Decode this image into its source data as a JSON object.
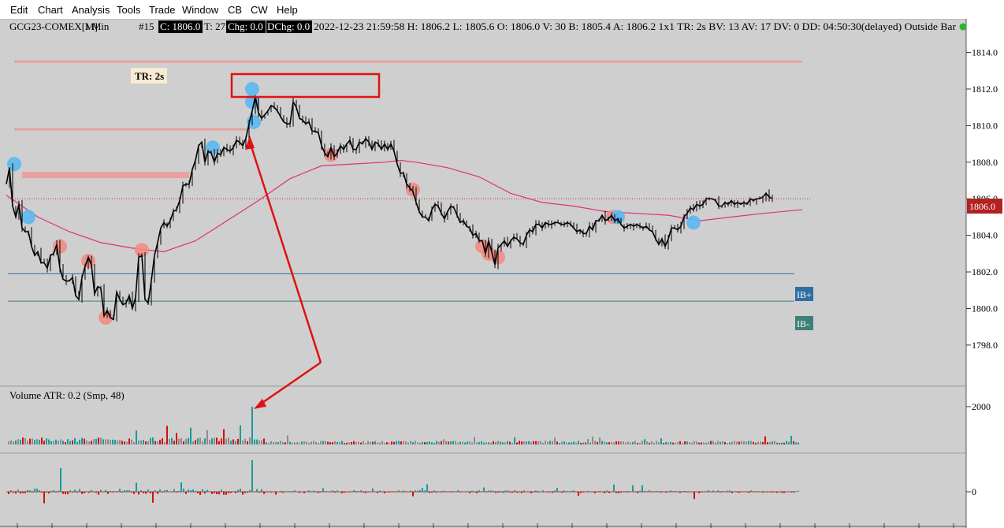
{
  "menu": [
    "Edit",
    "Chart",
    "Analysis",
    "Tools",
    "Trade",
    "Window",
    "CB",
    "CW",
    "Help"
  ],
  "info": {
    "symbol": "GCG23-COMEX[M]",
    "interval": "1 Min",
    "bar_no": "#15",
    "close_box": "C: 1806.0",
    "ticks": "T: 27",
    "chg_box": "Chg: 0.0",
    "dchg_box": "DChg: 0.0",
    "rest": "2022-12-23 21:59:58 H: 1806.2 L: 1805.6 O: 1806.0 V: 30 B: 1805.4 A: 1806.2 1x1 TR: 2s BV: 13 AV: 17 DV: 0 DD: 04:50:30(delayed) Outside Bar"
  },
  "tr_label": "TR: 2s",
  "last_price_label": "1806.0",
  "ib_plus_label": "IB+",
  "ib_minus_label": "IB-",
  "volume_label": "Volume  ATR: 0.2   (Smp, 48)",
  "colors": {
    "background": "#cfcfcf",
    "price_line": "#000000",
    "moving_average": "#e0307a",
    "last_price_box": "#b22222",
    "ib_line": "#2f6fa3",
    "ib_minus_line": "#3e7f7a",
    "volume_up": "#1a9a9a",
    "volume_down": "#d01010",
    "volume_neutral": "#8c8c8c",
    "annotation": "#e11111",
    "marker_blue": "#5ab8f0",
    "marker_red": "#f08c84",
    "zone": "#e8a0a0"
  },
  "chart_data": [
    {
      "type": "line",
      "yticks": [
        1798.0,
        1800.0,
        1802.0,
        1804.0,
        1806.0,
        1808.0,
        1810.0,
        1812.0,
        1814.0
      ],
      "ylim": [
        1796.4,
        1814.8
      ],
      "x": [
        0,
        4,
        8,
        12,
        16,
        20,
        24,
        28,
        32,
        36,
        40,
        44,
        48,
        52,
        56,
        60,
        64,
        68,
        72,
        76,
        80,
        84,
        88,
        92,
        96,
        100,
        104,
        108,
        112,
        116,
        120,
        124,
        128,
        132,
        136,
        140,
        144,
        148,
        152,
        156,
        160,
        164,
        168,
        172,
        176,
        180,
        184,
        188,
        192,
        196,
        200,
        204,
        208,
        212,
        216,
        220,
        224,
        228,
        232,
        236,
        240,
        244,
        248,
        252,
        256,
        260,
        264,
        268,
        272,
        276,
        280,
        284,
        288,
        292,
        296,
        300,
        304,
        308,
        312,
        316,
        320,
        324,
        328,
        332,
        336,
        340,
        344,
        348,
        352,
        356,
        360,
        364,
        368,
        372,
        376,
        380,
        384,
        388,
        392,
        396,
        400,
        404,
        408,
        412,
        416,
        420,
        424,
        428,
        432,
        436,
        440,
        444,
        448,
        452,
        456,
        460,
        464,
        468,
        472,
        476,
        480,
        484,
        488,
        492,
        496,
        500,
        504,
        508,
        512,
        516,
        520,
        524,
        528,
        532,
        536,
        540,
        544,
        548,
        552,
        556,
        560,
        564,
        568,
        572,
        576,
        580,
        584,
        588,
        592,
        596,
        600,
        604,
        608,
        612,
        616,
        620,
        624,
        628,
        632,
        636,
        640,
        644,
        648,
        652,
        656,
        660,
        664,
        668,
        672,
        676,
        680,
        684,
        688,
        692,
        696,
        700,
        704,
        708,
        712,
        716,
        720,
        724,
        728,
        732,
        736,
        740,
        744,
        748,
        752,
        756,
        760,
        764,
        768,
        772,
        776,
        780,
        784,
        788,
        792,
        796,
        800,
        804,
        808,
        812,
        816,
        820,
        824,
        828,
        832,
        836,
        840,
        844,
        848,
        852,
        856,
        860,
        864,
        868,
        872,
        876,
        880,
        884,
        888,
        892,
        896,
        900,
        904,
        908,
        912,
        916,
        920,
        924,
        928,
        932,
        936,
        940,
        944,
        948,
        952,
        956,
        960,
        964,
        968,
        972,
        976,
        980,
        984,
        988,
        992,
        996,
        1000,
        1004
      ],
      "price": [
        1806.8,
        1807.7,
        1805.6,
        1805.0,
        1805.7,
        1804.4,
        1804.2,
        1804.2,
        1803.4,
        1802.9,
        1803.1,
        1802.5,
        1802.5,
        1802.2,
        1802.9,
        1803.0,
        1803.5,
        1802.2,
        1801.6,
        1801.5,
        1801.5,
        1801.7,
        1800.7,
        1800.5,
        1801.7,
        1802.3,
        1802.8,
        1802.4,
        1800.8,
        1801.2,
        1801.1,
        1799.6,
        1799.9,
        1799.5,
        1799.4,
        1800.9,
        1800.5,
        1800.2,
        1800.3,
        1800.7,
        1800.0,
        1800.6,
        1802.8,
        1802.9,
        1800.5,
        1800.3,
        1801.5,
        1802.9,
        1803.6,
        1804.4,
        1804.7,
        1804.5,
        1804.8,
        1805.3,
        1805.4,
        1805.9,
        1806.7,
        1806.8,
        1806.8,
        1807.6,
        1808.1,
        1808.9,
        1809.1,
        1808.0,
        1808.6,
        1808.5,
        1808.0,
        1808.5,
        1808.4,
        1808.8,
        1808.7,
        1808.6,
        1808.8,
        1809.2,
        1809.1,
        1808.9,
        1809.3,
        1810.1,
        1810.8,
        1811.6,
        1810.7,
        1810.4,
        1810.6,
        1810.8,
        1811.1,
        1811.0,
        1810.8,
        1810.5,
        1810.2,
        1810.1,
        1810.1,
        1811.3,
        1811.0,
        1810.4,
        1810.3,
        1810.1,
        1810.2,
        1809.7,
        1809.7,
        1809.6,
        1808.9,
        1808.5,
        1808.3,
        1808.8,
        1808.3,
        1808.5,
        1808.9,
        1808.7,
        1809.0,
        1809.2,
        1808.7,
        1808.7,
        1809.1,
        1809.0,
        1809.3,
        1809.1,
        1808.7,
        1809.1,
        1809.0,
        1808.7,
        1809.0,
        1808.7,
        1809.0,
        1808.6,
        1807.9,
        1807.4,
        1807.4,
        1806.8,
        1806.6,
        1806.4,
        1805.8,
        1805.3,
        1805.0,
        1805.0,
        1804.8,
        1805.4,
        1805.7,
        1805.6,
        1805.2,
        1804.9,
        1805.3,
        1805.6,
        1805.5,
        1805.1,
        1804.7,
        1804.8,
        1804.5,
        1804.4,
        1804.0,
        1804.1,
        1803.7,
        1803.7,
        1803.0,
        1803.7,
        1803.1,
        1802.4,
        1803.3,
        1803.5,
        1803.7,
        1803.4,
        1803.7,
        1803.9,
        1803.8,
        1803.6,
        1803.5,
        1804.0,
        1804.3,
        1804.2,
        1804.6,
        1804.6,
        1804.4,
        1804.7,
        1804.6,
        1804.6,
        1804.7,
        1804.7,
        1804.6,
        1804.6,
        1804.7,
        1804.6,
        1804.4,
        1804.2,
        1804.3,
        1804.1,
        1804.1,
        1804.5,
        1804.3,
        1804.8,
        1804.8,
        1805.1,
        1804.8,
        1804.9,
        1805.1,
        1804.8,
        1804.9,
        1804.6,
        1804.4,
        1804.5,
        1804.6,
        1804.5,
        1804.6,
        1804.5,
        1804.4,
        1804.5,
        1804.3,
        1804.2,
        1803.8,
        1803.5,
        1803.8,
        1803.4,
        1803.8,
        1804.4,
        1804.4,
        1804.3,
        1804.5,
        1805.0,
        1805.2,
        1805.5,
        1805.4,
        1805.7,
        1805.6,
        1805.7,
        1806.0,
        1806.0,
        1806.0,
        1805.9,
        1805.6,
        1805.6,
        1805.8,
        1805.7,
        1805.9,
        1805.7,
        1805.8,
        1805.7,
        1805.8,
        1805.7,
        1806.0,
        1805.9,
        1806.0,
        1806.0,
        1806.1,
        1806.3,
        1806.1,
        1806.0
      ],
      "moving_average_x": [
        0,
        40,
        80,
        120,
        160,
        200,
        240,
        280,
        320,
        360,
        400,
        440,
        480,
        500,
        520,
        560,
        600,
        640,
        680,
        720,
        760,
        800,
        840,
        880,
        920,
        960,
        1010
      ],
      "moving_average": [
        1806.2,
        1805.0,
        1804.2,
        1803.6,
        1803.3,
        1803.1,
        1803.7,
        1804.8,
        1805.9,
        1807.1,
        1807.8,
        1807.9,
        1808.0,
        1808.1,
        1808.0,
        1807.7,
        1807.2,
        1806.3,
        1805.8,
        1805.6,
        1805.3,
        1805.2,
        1805.1,
        1804.8,
        1805.0,
        1805.2,
        1805.4
      ],
      "last_price": 1806.0,
      "ib_plus": 1801.9,
      "ib_minus": 1800.4,
      "zones": [
        {
          "x0": 10,
          "x1": 1010,
          "price": 1813.5
        },
        {
          "x0": 10,
          "x1": 305,
          "price": 1809.8
        },
        {
          "x0": 20,
          "x1": 232,
          "price": 1807.3
        }
      ],
      "markers": [
        {
          "x": 10,
          "price": 1807.9,
          "color": "blue"
        },
        {
          "x": 28,
          "price": 1805.0,
          "color": "blue"
        },
        {
          "x": 68,
          "price": 1803.4,
          "color": "red"
        },
        {
          "x": 104,
          "price": 1802.6,
          "color": "red"
        },
        {
          "x": 126,
          "price": 1799.5,
          "color": "red"
        },
        {
          "x": 172,
          "price": 1803.2,
          "color": "red"
        },
        {
          "x": 262,
          "price": 1808.8,
          "color": "blue"
        },
        {
          "x": 312,
          "price": 1812.0,
          "color": "blue"
        },
        {
          "x": 312,
          "price": 1811.3,
          "color": "blue"
        },
        {
          "x": 314,
          "price": 1810.2,
          "color": "blue"
        },
        {
          "x": 412,
          "price": 1808.4,
          "color": "red"
        },
        {
          "x": 516,
          "price": 1806.5,
          "color": "red"
        },
        {
          "x": 604,
          "price": 1803.4,
          "color": "red"
        },
        {
          "x": 612,
          "price": 1803.0,
          "color": "red"
        },
        {
          "x": 624,
          "price": 1802.8,
          "color": "red"
        },
        {
          "x": 770,
          "price": 1805.0,
          "color": "red"
        },
        {
          "x": 776,
          "price": 1805.0,
          "color": "blue"
        },
        {
          "x": 872,
          "price": 1804.7,
          "color": "blue"
        }
      ]
    },
    {
      "type": "bar",
      "title": "Volume",
      "yticks": [
        2000
      ],
      "spike_x": 311,
      "spike_value": 2000
    },
    {
      "type": "bar",
      "yticks": [
        0
      ]
    }
  ]
}
